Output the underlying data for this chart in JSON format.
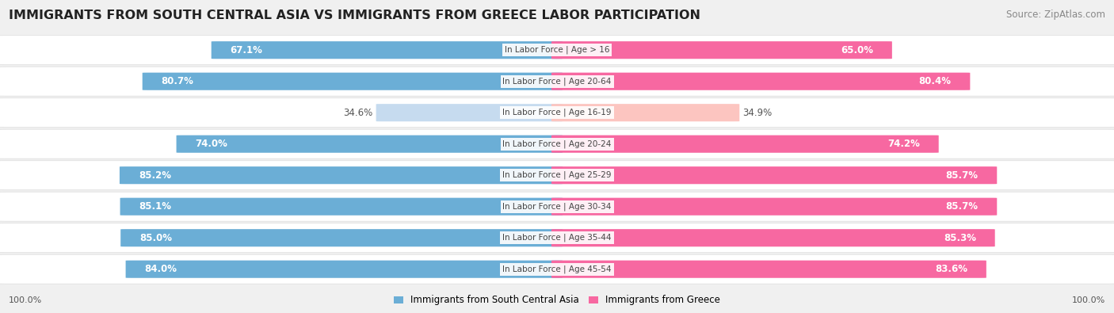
{
  "title": "IMMIGRANTS FROM SOUTH CENTRAL ASIA VS IMMIGRANTS FROM GREECE LABOR PARTICIPATION",
  "source": "Source: ZipAtlas.com",
  "categories": [
    "In Labor Force | Age > 16",
    "In Labor Force | Age 20-64",
    "In Labor Force | Age 16-19",
    "In Labor Force | Age 20-24",
    "In Labor Force | Age 25-29",
    "In Labor Force | Age 30-34",
    "In Labor Force | Age 35-44",
    "In Labor Force | Age 45-54"
  ],
  "left_values": [
    67.1,
    80.7,
    34.6,
    74.0,
    85.2,
    85.1,
    85.0,
    84.0
  ],
  "right_values": [
    65.0,
    80.4,
    34.9,
    74.2,
    85.7,
    85.7,
    85.3,
    83.6
  ],
  "left_color_strong": "#6baed6",
  "left_color_light": "#c6dbef",
  "right_color_strong": "#f768a1",
  "right_color_light": "#fcc5c0",
  "label_left": "Immigrants from South Central Asia",
  "label_right": "Immigrants from Greece",
  "bg_color": "#f0f0f0",
  "row_bg": "#ffffff",
  "title_fontsize": 11.5,
  "source_fontsize": 8.5,
  "bar_label_fontsize": 8.5,
  "category_fontsize": 7.5,
  "legend_fontsize": 8.5,
  "axis_label_fontsize": 8,
  "max_val": 100.0,
  "threshold": 50.0
}
